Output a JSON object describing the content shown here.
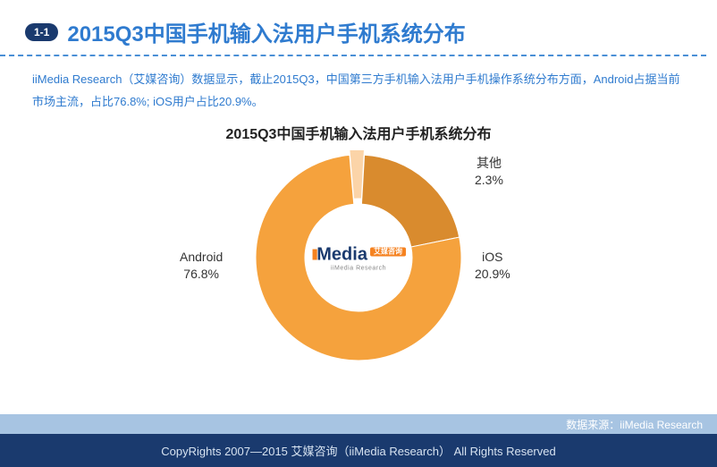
{
  "header": {
    "section_num": "1-1",
    "title": "2015Q3中国手机输入法用户手机系统分布"
  },
  "description": "iiMedia Research（艾媒咨询）数据显示，截止2015Q3，中国第三方手机输入法用户手机操作系统分布方面，Android占据当前市场主流，占比76.8%; iOS用户占比20.9%。",
  "chart": {
    "type": "donut",
    "title": "2015Q3中国手机输入法用户手机系统分布",
    "inner_radius": 60,
    "outer_radius": 115,
    "background_color": "#ffffff",
    "title_fontsize": 16,
    "label_fontsize": 14,
    "start_angle_deg": -5,
    "slices": [
      {
        "name": "其他",
        "value": 2.3,
        "color": "#fbd4a8",
        "label": "其他\n2.3%"
      },
      {
        "name": "iOS",
        "value": 20.9,
        "color": "#d98b2e",
        "label": "iOS\n20.9%"
      },
      {
        "name": "Android",
        "value": 76.8,
        "color": "#f5a23d",
        "label": "Android\n76.8%"
      }
    ],
    "center_logo": {
      "brand": "Media",
      "prefix_dots": "ıı",
      "badge": "艾媒咨询",
      "sub": "iiMedia Research"
    }
  },
  "footer": {
    "source_label": "数据来源：iiMedia Research",
    "copyright": "CopyRights 2007—2015 艾媒咨询（iiMedia Research） All Rights Reserved"
  },
  "colors": {
    "title_blue": "#2f7bcf",
    "dark_navy": "#1a3a6e",
    "dash_blue": "#4a8fd6",
    "src_bar": "#a7c4e2"
  }
}
